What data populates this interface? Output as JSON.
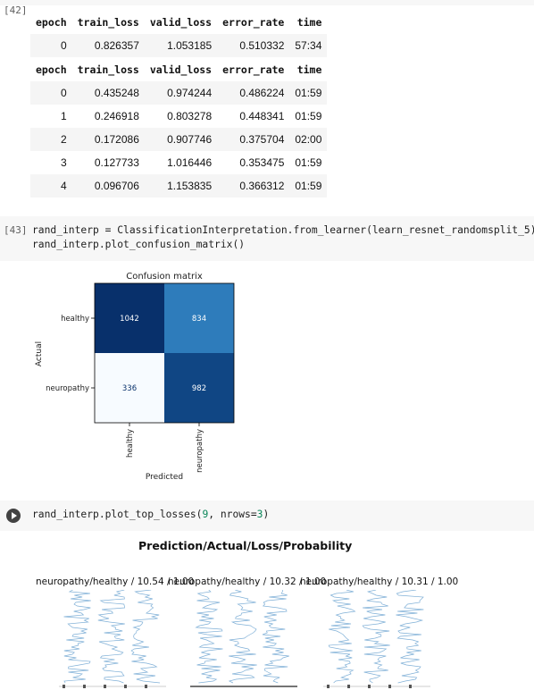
{
  "cell42": {
    "prompt": "[42]",
    "table1": {
      "headers": [
        "epoch",
        "train_loss",
        "valid_loss",
        "error_rate",
        "time"
      ],
      "rows": [
        [
          "0",
          "0.826357",
          "1.053185",
          "0.510332",
          "57:34"
        ]
      ]
    },
    "table2": {
      "headers": [
        "epoch",
        "train_loss",
        "valid_loss",
        "error_rate",
        "time"
      ],
      "rows": [
        [
          "0",
          "0.435248",
          "0.974244",
          "0.486224",
          "01:59"
        ],
        [
          "1",
          "0.246918",
          "0.803278",
          "0.448341",
          "01:59"
        ],
        [
          "2",
          "0.172086",
          "0.907746",
          "0.375704",
          "02:00"
        ],
        [
          "3",
          "0.127733",
          "1.016446",
          "0.353475",
          "01:59"
        ],
        [
          "4",
          "0.096706",
          "1.153835",
          "0.366312",
          "01:59"
        ]
      ]
    }
  },
  "cell43": {
    "prompt": "[43]",
    "code_line1": "rand_interp = ClassificationInterpretation.from_learner(learn_resnet_randomsplit_5)",
    "code_line2": "rand_interp.plot_confusion_matrix()"
  },
  "chart_data": [
    {
      "type": "heatmap",
      "title": "Confusion matrix",
      "xlabel": "Predicted",
      "ylabel": "Actual",
      "x_categories": [
        "healthy",
        "neuropathy"
      ],
      "y_categories": [
        "healthy",
        "neuropathy"
      ],
      "values": [
        [
          1042,
          834
        ],
        [
          336,
          982
        ]
      ],
      "cell_labels": [
        [
          "1042",
          "834"
        ],
        [
          "336",
          "982"
        ]
      ],
      "colormap": "Blues"
    }
  ],
  "cell44": {
    "code_prefix": "rand_interp.plot_top_losses(",
    "code_arg1": "9",
    "code_sep": ", nrows=",
    "code_arg2": "3",
    "code_suffix": ")",
    "figure_title": "Prediction/Actual/Loss/Probability",
    "subplot_titles": [
      "neuropathy/healthy / 10.54 / 1.00",
      "neuropathy/healthy / 10.32 / 1.00",
      "neuropathy/healthy / 10.31 / 1.00"
    ]
  },
  "colors": {
    "cell_bg": "#f7f7f7",
    "matrix_dark": "#08306b",
    "matrix_light": "#f7fbff",
    "signal_blue": "#6aa2d0"
  }
}
